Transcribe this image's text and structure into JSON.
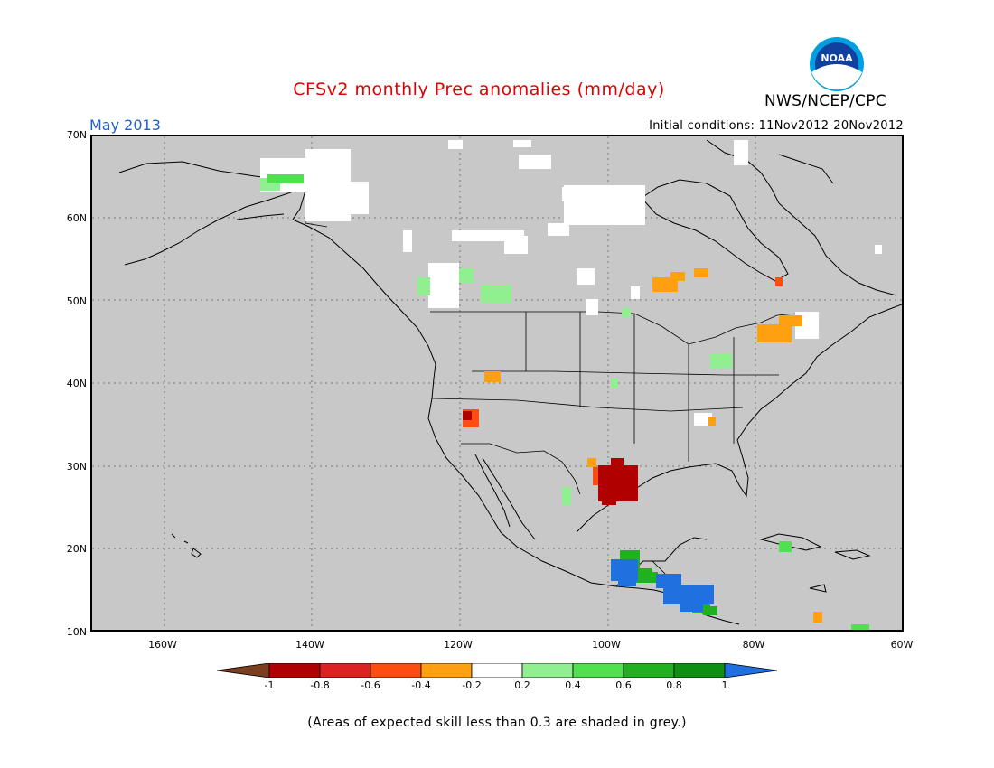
{
  "header": {
    "title": "CFSv2 monthly Prec anomalies (mm/day)",
    "agency": "NWS/NCEP/CPC",
    "logo_text": "NOAA",
    "month": "May 2013",
    "initial_conditions": "Initial conditions: 11Nov2012-20Nov2012"
  },
  "map": {
    "lat_labels": [
      "70N",
      "60N",
      "50N",
      "40N",
      "30N",
      "20N",
      "10N"
    ],
    "lon_labels": [
      "160W",
      "140W",
      "120W",
      "100W",
      "80W",
      "60W"
    ],
    "lat_range": [
      10,
      70
    ],
    "lon_range": [
      -170,
      -60
    ],
    "background_color": "#c8c8c8",
    "gridlines": true
  },
  "legend": {
    "tick_labels": [
      "-1",
      "-0.8",
      "-0.6",
      "-0.4",
      "-0.2",
      "0.2",
      "0.4",
      "0.6",
      "0.8",
      "1"
    ],
    "colors": {
      "below_min": "#7b3f1f",
      "m1_m08": "#b00000",
      "m08_m06": "#dd2020",
      "m06_m04": "#ff4c10",
      "m04_m02": "#ffa010",
      "neutral": "#ffffff",
      "p02_p04": "#90f090",
      "p04_p06": "#50e050",
      "p06_p08": "#20b020",
      "p08_p1": "#109010",
      "above_max": "#2070e0"
    }
  },
  "footnote": "(Areas of expected skill less than 0.3 are shaded in grey.)"
}
